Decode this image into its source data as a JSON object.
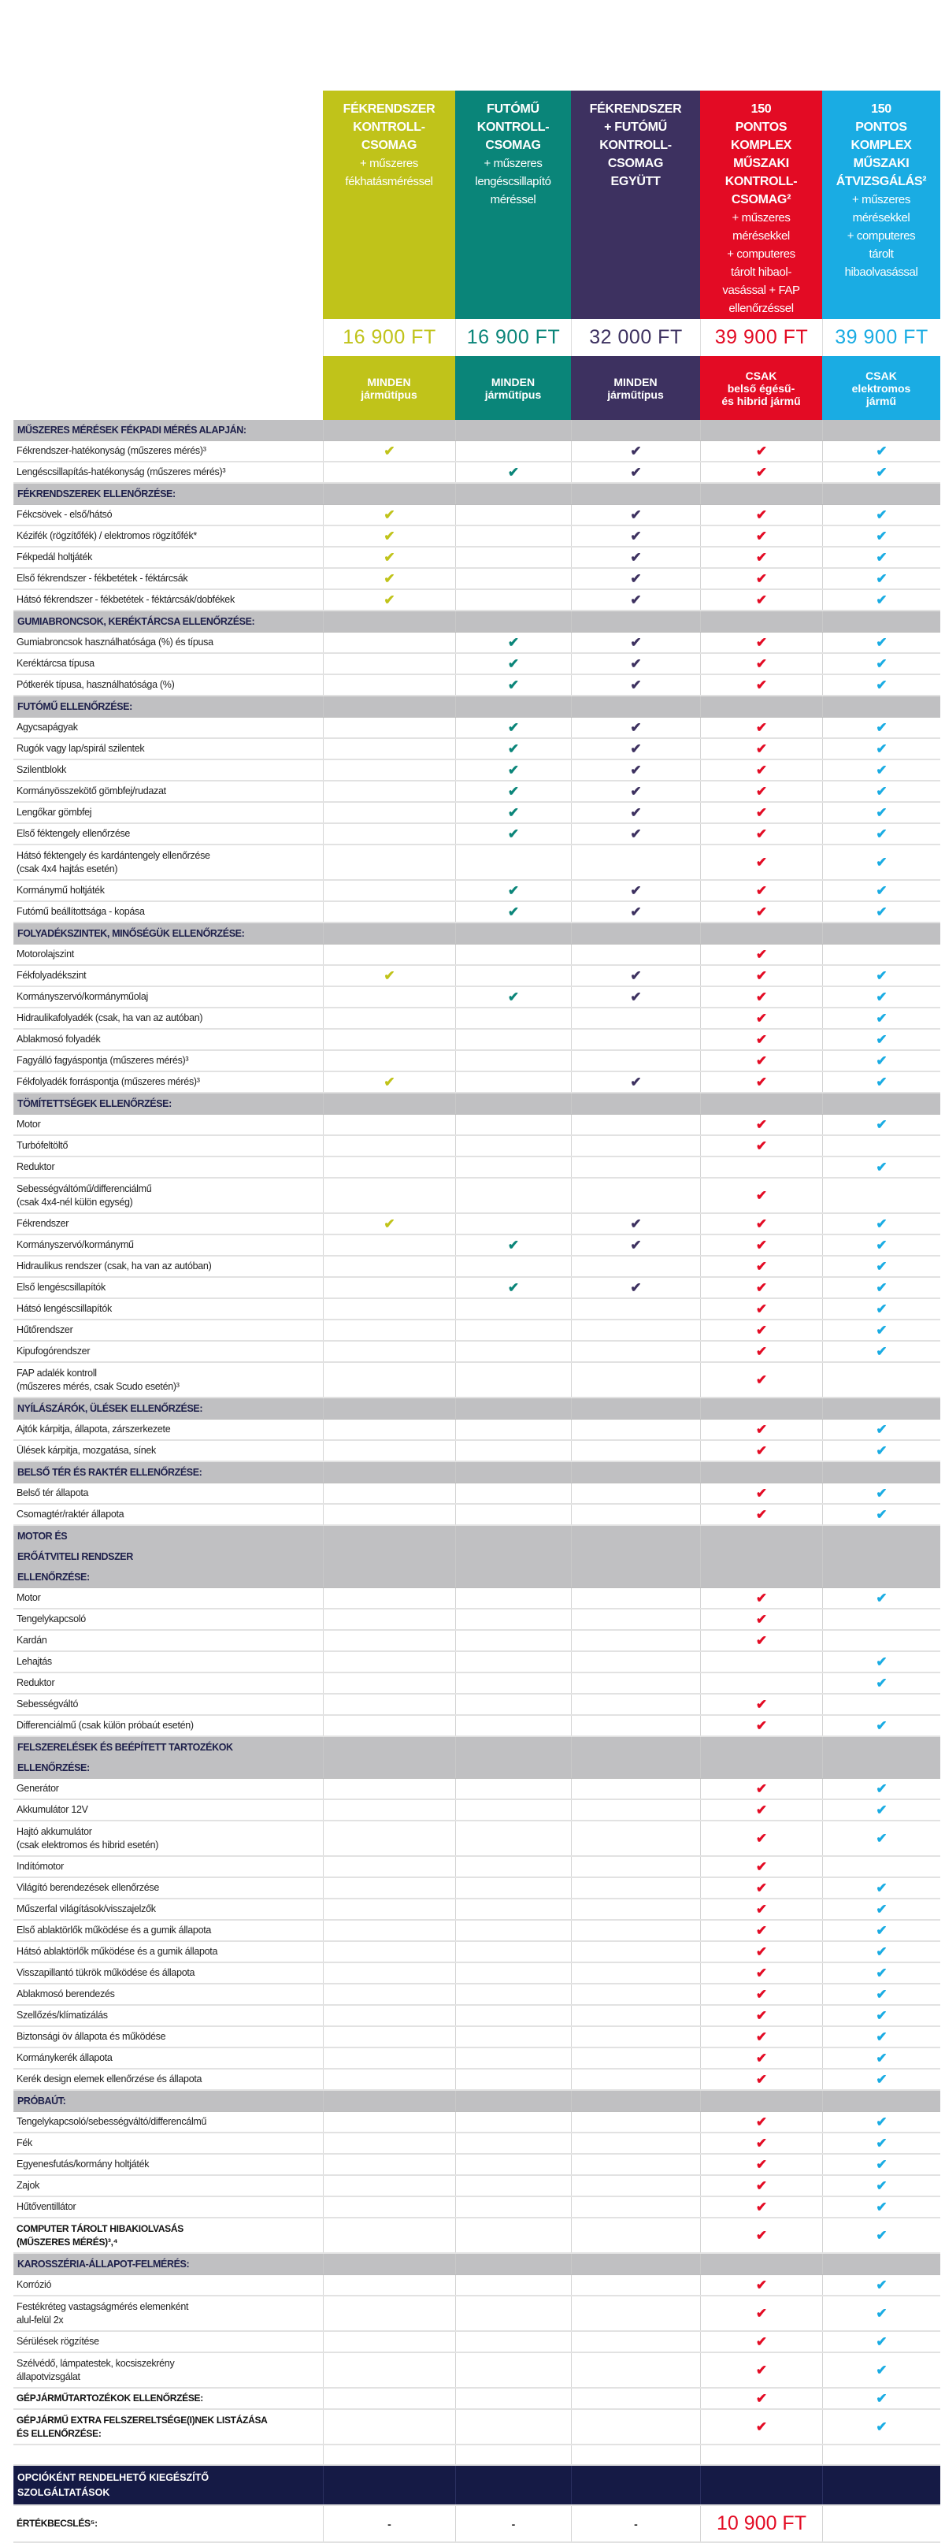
{
  "colors": {
    "section_bg": "#c0c0c2",
    "section_text": "#1d1f4a",
    "dark_bar": "#151a45"
  },
  "columns": [
    {
      "title": "FÉKRENDSZER\nKONTROLL-\nCSOMAG",
      "subtitle": "+ műszeres\nfékhatásméréssel",
      "price": "16 900 FT",
      "type": "MINDEN\njárműtípus",
      "color": "#c0c31a"
    },
    {
      "title": "FUTÓMŰ\nKONTROLL-\nCSOMAG",
      "subtitle": "+ műszeres\nlengéscsillapító\nméréssel",
      "price": "16 900 FT",
      "type": "MINDEN\njárműtípus",
      "color": "#0a8579"
    },
    {
      "title": "FÉKRENDSZER\n+ FUTÓMŰ\nKONTROLL-\nCSOMAG\nEGYÜTT",
      "subtitle": "",
      "price": "32 000 FT",
      "type": "MINDEN\njárműtípus",
      "color": "#3d3160"
    },
    {
      "title": "150\nPONTOS\nKOMPLEX\nMŰSZAKI\nKONTROLL-\nCSOMAG²",
      "subtitle": "+ műszeres\nmérésekkel\n+ computeres\ntárolt hibaol-\nvasással + FAP\nellenőrzéssel",
      "price": "39 900 FT",
      "type": "CSAK\nbelső égésű-\nés hibrid jármű",
      "color": "#e30b24"
    },
    {
      "title": "150\nPONTOS\nKOMPLEX\nMŰSZAKI\nÁTVIZSGÁLÁS²",
      "subtitle": "+ műszeres\nmérésekkel\n+ computeres\ntárolt\nhibaolvasással",
      "price": "39 900 FT",
      "type": "CSAK\nelektromos\njármű",
      "color": "#1aace3"
    }
  ],
  "check_icon": "check-icon",
  "sections": [
    {
      "title": "MŰSZERES MÉRÉSEK FÉKPADI MÉRÉS ALAPJÁN:",
      "rows": [
        {
          "label": "Fékrendszer-hatékonyság (műszeres mérés)³",
          "checks": [
            1,
            0,
            1,
            1,
            1
          ]
        },
        {
          "label": "Lengéscsillapítás-hatékonyság (műszeres mérés)³",
          "checks": [
            0,
            1,
            1,
            1,
            1
          ]
        }
      ]
    },
    {
      "title": "FÉKRENDSZEREK ELLENŐRZÉSE:",
      "rows": [
        {
          "label": "Fékcsövek - első/hátsó",
          "checks": [
            1,
            0,
            1,
            1,
            1
          ]
        },
        {
          "label": "Kézifék (rögzítőfék) / elektromos rögzítőfék*",
          "checks": [
            1,
            0,
            1,
            1,
            1
          ]
        },
        {
          "label": "Fékpedál holtjáték",
          "checks": [
            1,
            0,
            1,
            1,
            1
          ]
        },
        {
          "label": "Első fékrendszer - fékbetétek  - féktárcsák",
          "checks": [
            1,
            0,
            1,
            1,
            1
          ]
        },
        {
          "label": "Hátsó fékrendszer - fékbetétek -  féktárcsák/dobfékek",
          "checks": [
            1,
            0,
            1,
            1,
            1
          ]
        }
      ]
    },
    {
      "title": "GUMIABRONCSOK,  KERÉKTÁRCSA ELLENŐRZÉSE:",
      "rows": [
        {
          "label": "Gumiabroncsok használhatósága (%) és típusa",
          "checks": [
            0,
            1,
            1,
            1,
            1
          ]
        },
        {
          "label": "Keréktárcsa típusa",
          "checks": [
            0,
            1,
            1,
            1,
            1
          ]
        },
        {
          "label": "Pótkerék típusa, használhatósága (%)",
          "checks": [
            0,
            1,
            1,
            1,
            1
          ]
        }
      ]
    },
    {
      "title": "FUTÓMŰ ELLENŐRZÉSE:",
      "rows": [
        {
          "label": "Agycsapágyak",
          "checks": [
            0,
            1,
            1,
            1,
            1
          ]
        },
        {
          "label": "Rugók vagy  lap/spirál szilentek",
          "checks": [
            0,
            1,
            1,
            1,
            1
          ]
        },
        {
          "label": "Szilentblokk",
          "checks": [
            0,
            1,
            1,
            1,
            1
          ]
        },
        {
          "label": "Kormányösszekötő gömbfej/rudazat",
          "checks": [
            0,
            1,
            1,
            1,
            1
          ]
        },
        {
          "label": "Lengőkar gömbfej",
          "checks": [
            0,
            1,
            1,
            1,
            1
          ]
        },
        {
          "label": "Első féktengely ellenőrzése",
          "checks": [
            0,
            1,
            1,
            1,
            1
          ]
        },
        {
          "label": "Hátsó féktengely és kardántengely ellenőrzése\n(csak 4x4 hajtás esetén)",
          "checks": [
            0,
            0,
            0,
            1,
            1
          ]
        },
        {
          "label": "Kormánymű holtjáték",
          "checks": [
            0,
            1,
            1,
            1,
            1
          ]
        },
        {
          "label": "Futómű beállítottsága - kopása",
          "checks": [
            0,
            1,
            1,
            1,
            1
          ]
        }
      ]
    },
    {
      "title": "FOLYADÉKSZINTEK, MINŐSÉGÜK  ELLENŐRZÉSE:",
      "rows": [
        {
          "label": "Motorolajszint",
          "checks": [
            0,
            0,
            0,
            1,
            0
          ]
        },
        {
          "label": "Fékfolyadékszint",
          "checks": [
            1,
            0,
            1,
            1,
            1
          ]
        },
        {
          "label": "Kormányszervó/kormányműolaj",
          "checks": [
            0,
            1,
            1,
            1,
            1
          ]
        },
        {
          "label": "Hidraulikafolyadék (csak, ha van az autóban)",
          "checks": [
            0,
            0,
            0,
            1,
            1
          ]
        },
        {
          "label": "Ablakmosó folyadék",
          "checks": [
            0,
            0,
            0,
            1,
            1
          ]
        },
        {
          "label": "Fagyálló fagyáspontja (műszeres mérés)³",
          "checks": [
            0,
            0,
            0,
            1,
            1
          ]
        },
        {
          "label": "Fékfolyadék forráspontja (műszeres mérés)³",
          "checks": [
            1,
            0,
            1,
            1,
            1
          ]
        }
      ]
    },
    {
      "title": "TÖMÍTETTSÉGEK ELLENŐRZÉSE:",
      "rows": [
        {
          "label": "Motor",
          "checks": [
            0,
            0,
            0,
            1,
            1
          ]
        },
        {
          "label": "Turbófeltöltő",
          "checks": [
            0,
            0,
            0,
            1,
            0
          ]
        },
        {
          "label": "Reduktor",
          "checks": [
            0,
            0,
            0,
            0,
            1
          ]
        },
        {
          "label": "Sebességváltómű/differenciálmű\n(csak 4x4-nél külön egység)",
          "checks": [
            0,
            0,
            0,
            1,
            0
          ]
        },
        {
          "label": "Fékrendszer",
          "checks": [
            1,
            0,
            1,
            1,
            1
          ]
        },
        {
          "label": "Kormányszervó/kormánymű",
          "checks": [
            0,
            1,
            1,
            1,
            1
          ]
        },
        {
          "label": "Hidraulikus rendszer (csak, ha van az autóban)",
          "checks": [
            0,
            0,
            0,
            1,
            1
          ]
        },
        {
          "label": "Első lengéscsillapítók",
          "checks": [
            0,
            1,
            1,
            1,
            1
          ]
        },
        {
          "label": "Hátsó lengéscsillapítók",
          "checks": [
            0,
            0,
            0,
            1,
            1
          ]
        },
        {
          "label": "Hűtőrendszer",
          "checks": [
            0,
            0,
            0,
            1,
            1
          ]
        },
        {
          "label": "Kipufogórendszer",
          "checks": [
            0,
            0,
            0,
            1,
            1
          ]
        },
        {
          "label": "FAP adalék kontroll\n(műszeres mérés, csak Scudo esetén)³",
          "checks": [
            0,
            0,
            0,
            1,
            0
          ]
        }
      ]
    },
    {
      "title": "NYÍLÁSZÁRÓK, ÜLÉSEK ELLENŐRZÉSE:",
      "rows": [
        {
          "label": "Ajtók kárpitja, állapota, zárszerkezete",
          "checks": [
            0,
            0,
            0,
            1,
            1
          ]
        },
        {
          "label": "Ülések kárpitja, mozgatása, sínek",
          "checks": [
            0,
            0,
            0,
            1,
            1
          ]
        }
      ]
    },
    {
      "title": "BELSŐ TÉR ÉS RAKTÉR ELLENŐRZÉSE:",
      "rows": [
        {
          "label": "Belső tér állapota",
          "checks": [
            0,
            0,
            0,
            1,
            1
          ]
        },
        {
          "label": "Csomagtér/raktér állapota",
          "checks": [
            0,
            0,
            0,
            1,
            1
          ]
        }
      ]
    },
    {
      "title": "MOTOR ÉS\nERŐÁTVITELI RENDSZER\nELLENŐRZÉSE:",
      "rows": [
        {
          "label": "Motor",
          "checks": [
            0,
            0,
            0,
            1,
            1
          ]
        },
        {
          "label": "Tengelykapcsoló",
          "checks": [
            0,
            0,
            0,
            1,
            0
          ]
        },
        {
          "label": "Kardán",
          "checks": [
            0,
            0,
            0,
            1,
            0
          ]
        },
        {
          "label": "Lehajtás",
          "checks": [
            0,
            0,
            0,
            0,
            1
          ]
        },
        {
          "label": "Reduktor",
          "checks": [
            0,
            0,
            0,
            0,
            1
          ]
        },
        {
          "label": "Sebességváltó",
          "checks": [
            0,
            0,
            0,
            1,
            0
          ]
        },
        {
          "label": "Differenciálmű (csak külön próbaút esetén)",
          "checks": [
            0,
            0,
            0,
            1,
            1
          ]
        }
      ]
    },
    {
      "title": "FELSZERELÉSEK ÉS BEÉPÍTETT TARTOZÉKOK\nELLENŐRZÉSE:",
      "rows": [
        {
          "label": "Generátor",
          "checks": [
            0,
            0,
            0,
            1,
            1
          ]
        },
        {
          "label": "Akkumulátor 12V",
          "checks": [
            0,
            0,
            0,
            1,
            1
          ]
        },
        {
          "label": "Hajtó akkumulátor\n(csak elektromos és hibrid esetén)",
          "checks": [
            0,
            0,
            0,
            1,
            1
          ]
        },
        {
          "label": "Indítómotor",
          "checks": [
            0,
            0,
            0,
            1,
            0
          ]
        },
        {
          "label": "Világító berendezések ellenőrzése",
          "checks": [
            0,
            0,
            0,
            1,
            1
          ]
        },
        {
          "label": "Műszerfal világítások/visszajelzők",
          "checks": [
            0,
            0,
            0,
            1,
            1
          ]
        },
        {
          "label": "Első ablaktörlők működése és a gumik állapota",
          "checks": [
            0,
            0,
            0,
            1,
            1
          ]
        },
        {
          "label": "Hátsó ablaktörlők működése és a gumik állapota",
          "checks": [
            0,
            0,
            0,
            1,
            1
          ]
        },
        {
          "label": "Visszapillantó tükrök működése és állapota",
          "checks": [
            0,
            0,
            0,
            1,
            1
          ]
        },
        {
          "label": "Ablakmosó berendezés",
          "checks": [
            0,
            0,
            0,
            1,
            1
          ]
        },
        {
          "label": "Szellőzés/klímatizálás",
          "checks": [
            0,
            0,
            0,
            1,
            1
          ]
        },
        {
          "label": "Biztonsági öv állapota és működése",
          "checks": [
            0,
            0,
            0,
            1,
            1
          ]
        },
        {
          "label": "Kormánykerék állapota",
          "checks": [
            0,
            0,
            0,
            1,
            1
          ]
        },
        {
          "label": "Kerék design elemek ellenőrzése és állapota",
          "checks": [
            0,
            0,
            0,
            1,
            1
          ]
        }
      ]
    },
    {
      "title": "PRÓBAÚT:",
      "rows": [
        {
          "label": "Tengelykapcsoló/sebességváltó/differencálmű",
          "checks": [
            0,
            0,
            0,
            1,
            1
          ]
        },
        {
          "label": "Fék",
          "checks": [
            0,
            0,
            0,
            1,
            1
          ]
        },
        {
          "label": "Egyenesfutás/kormány holtjáték",
          "checks": [
            0,
            0,
            0,
            1,
            1
          ]
        },
        {
          "label": "Zajok",
          "checks": [
            0,
            0,
            0,
            1,
            1
          ]
        },
        {
          "label": "Hűtőventillátor",
          "checks": [
            0,
            0,
            0,
            1,
            1
          ]
        },
        {
          "label": "COMPUTER TÁROLT HIBAKIOLVASÁS\n(MŰSZERES MÉRÉS)³,⁴",
          "checks": [
            0,
            0,
            0,
            1,
            1
          ],
          "bold": true
        }
      ]
    },
    {
      "title": "KAROSSZÉRIA-ÁLLAPOT-FELMÉRÉS:",
      "rows": [
        {
          "label": "Korrózió",
          "checks": [
            0,
            0,
            0,
            1,
            1
          ]
        },
        {
          "label": "Festékréteg vastagságmérés elemenként\nalul-felül 2x",
          "checks": [
            0,
            0,
            0,
            1,
            1
          ]
        },
        {
          "label": "Sérülések rögzítése",
          "checks": [
            0,
            0,
            0,
            1,
            1
          ]
        },
        {
          "label": "Szélvédő, lámpatestek, kocsiszekrény\nállapotvizsgálat",
          "checks": [
            0,
            0,
            0,
            1,
            1
          ]
        },
        {
          "label": "GÉPJÁRMŰTARTOZÉKOK ELLENŐRZÉSE:",
          "checks": [
            0,
            0,
            0,
            1,
            1
          ],
          "bold": true
        },
        {
          "label": "GÉPJÁRMŰ EXTRA FELSZERELTSÉGE(I)NEK LISTÁZÁSA\nÉS ELLENŐRZÉSE:",
          "checks": [
            0,
            0,
            0,
            1,
            1
          ],
          "bold": true
        },
        {
          "label": "",
          "checks": [
            0,
            0,
            0,
            0,
            0
          ]
        }
      ]
    }
  ],
  "optional": {
    "title": "OPCIÓKÉNT RENDELHETŐ KIEGÉSZÍTŐ\nSZOLGÁLTATÁSOK",
    "label": "ÉRTÉKBECSLÉS⁵:",
    "values": [
      "-",
      "-",
      "-",
      "10 900 FT",
      ""
    ]
  }
}
